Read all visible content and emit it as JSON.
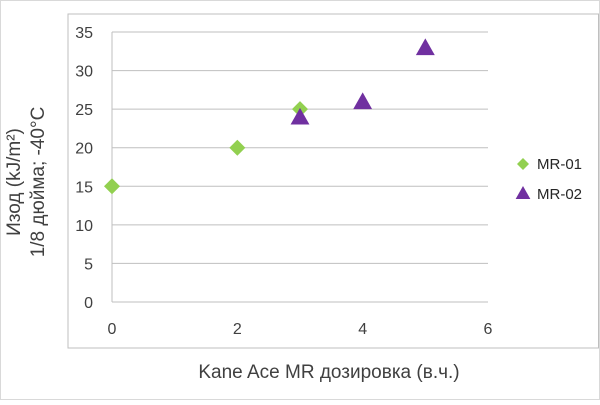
{
  "chart_data": {
    "type": "scatter",
    "title": "",
    "xlabel": "Kane Ace MR дозировка (в.ч.)",
    "ylabel_line1": "Изод (kJ/m²)",
    "ylabel_line2": "1/8 дюйма; -40°C",
    "xlim": [
      0,
      6
    ],
    "ylim": [
      0,
      35
    ],
    "xticks": [
      "0",
      "2",
      "4",
      "6"
    ],
    "yticks": [
      "0",
      "5",
      "10",
      "15",
      "20",
      "25",
      "30",
      "35"
    ],
    "grid": "horizontal",
    "legend_position": "right",
    "series": [
      {
        "name": "MR-01",
        "marker": "diamond",
        "color": "#92d050",
        "points": [
          {
            "x": 0,
            "y": 15
          },
          {
            "x": 2,
            "y": 20
          },
          {
            "x": 3,
            "y": 25
          }
        ]
      },
      {
        "name": "MR-02",
        "marker": "triangle",
        "color": "#7030a0",
        "points": [
          {
            "x": 3,
            "y": 24
          },
          {
            "x": 4,
            "y": 26
          },
          {
            "x": 5,
            "y": 33
          }
        ]
      }
    ]
  }
}
